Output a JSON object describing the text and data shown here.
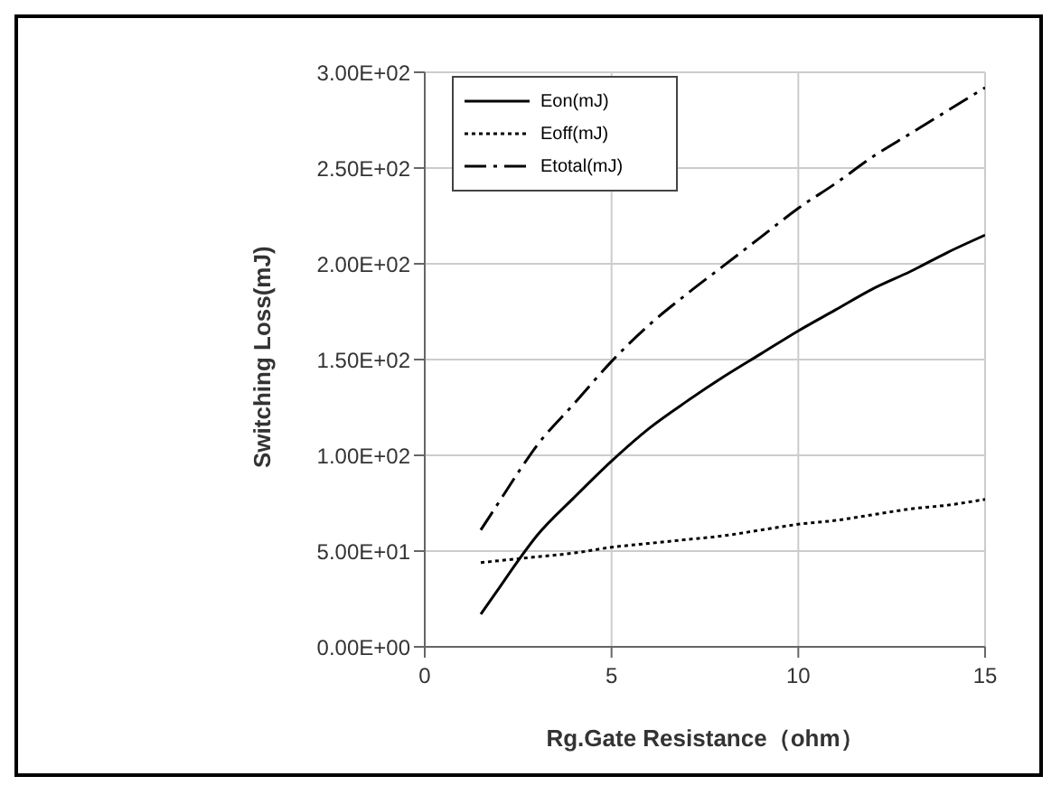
{
  "chart_data": {
    "type": "line",
    "xlabel": "Rg.Gate Resistance（ohm）",
    "ylabel": "Switching Loss(mJ)",
    "x": [
      1.5,
      2,
      2.5,
      3,
      4,
      5,
      6,
      7,
      8,
      9,
      10,
      11,
      12,
      13,
      14,
      15
    ],
    "series": [
      {
        "name": "Eon(mJ)",
        "color": "#000000",
        "line_style": "solid",
        "values": [
          17,
          31,
          45,
          58,
          78,
          97,
          114,
          128,
          141,
          153,
          165,
          176,
          187,
          196,
          206,
          215
        ]
      },
      {
        "name": "Eoff(mJ)",
        "color": "#000000",
        "line_style": "dotted",
        "values": [
          44,
          45,
          46,
          47,
          49,
          52,
          54,
          56,
          58,
          61,
          64,
          66,
          69,
          72,
          74,
          77
        ]
      },
      {
        "name": "Etotal(mJ)",
        "color": "#000000",
        "line_style": "dashed",
        "values": [
          61,
          76,
          91,
          105,
          127,
          149,
          168,
          184,
          199,
          214,
          229,
          242,
          256,
          268,
          280,
          292
        ]
      }
    ],
    "xlim": [
      0,
      15
    ],
    "xticks": [
      0,
      5,
      10,
      15
    ],
    "ylim": [
      0,
      300
    ],
    "yticks": [
      {
        "value": 0,
        "label": "0.00E+00"
      },
      {
        "value": 50,
        "label": "5.00E+01"
      },
      {
        "value": 100,
        "label": "1.00E+02"
      },
      {
        "value": 150,
        "label": "1.50E+02"
      },
      {
        "value": 200,
        "label": "2.00E+02"
      },
      {
        "value": 250,
        "label": "2.50E+02"
      },
      {
        "value": 300,
        "label": "3.00E+02"
      }
    ],
    "grid": true,
    "legend": "top left",
    "marker": "none"
  }
}
